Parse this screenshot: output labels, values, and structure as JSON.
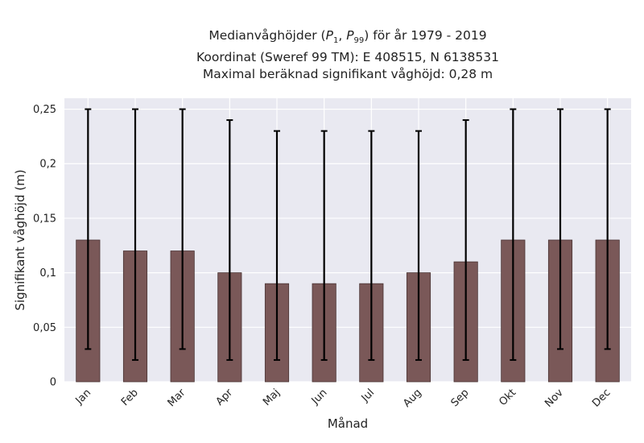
{
  "chart_data": {
    "type": "bar",
    "title_parts": {
      "line1_prefix": "Medianvåghöjder (",
      "p_symbol": "P",
      "p1_sub": "1",
      "p99_sub": "99",
      "line1_suffix": ") för år 1979 - 2019"
    },
    "title_lines": [
      "Medianvåghöjder (P1, P99) för år 1979 - 2019",
      "Koordinat (Sweref 99 TM): E 408515, N 6138531",
      "Maximal beräknad signifikant våghöjd: 0,28 m"
    ],
    "xlabel": "Månad",
    "ylabel": "Signifikant våghöjd (m)",
    "categories": [
      "Jan",
      "Feb",
      "Mar",
      "Apr",
      "Maj",
      "Jun",
      "Jul",
      "Aug",
      "Sep",
      "Okt",
      "Nov",
      "Dec"
    ],
    "values": [
      0.13,
      0.12,
      0.12,
      0.1,
      0.09,
      0.09,
      0.09,
      0.1,
      0.11,
      0.13,
      0.13,
      0.13
    ],
    "error_low": [
      0.03,
      0.02,
      0.03,
      0.02,
      0.02,
      0.02,
      0.02,
      0.02,
      0.02,
      0.02,
      0.03,
      0.03
    ],
    "error_high": [
      0.25,
      0.25,
      0.25,
      0.24,
      0.23,
      0.23,
      0.23,
      0.23,
      0.24,
      0.25,
      0.25,
      0.25
    ],
    "ylim": [
      0,
      0.26
    ],
    "yticks": [
      0,
      0.05,
      0.1,
      0.15,
      0.2,
      0.25
    ],
    "ytick_labels": [
      "0",
      "0,05",
      "0,1",
      "0,15",
      "0,2",
      "0,25"
    ],
    "grid": true,
    "colors": {
      "bar_fill": "#7a5858",
      "bar_edge": "#4a3434",
      "error_bar": "#000000",
      "plot_background": "#e9e9f1",
      "grid": "#ffffff"
    }
  }
}
